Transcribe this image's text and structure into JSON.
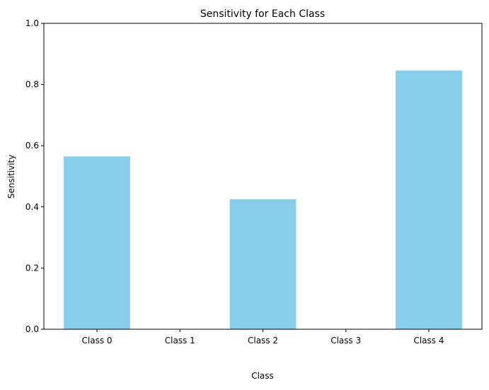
{
  "chart_data": {
    "type": "bar",
    "title": "Sensitivity for Each Class",
    "xlabel": "Class",
    "ylabel": "Sensitivity",
    "categories": [
      "Class 0",
      "Class 1",
      "Class 2",
      "Class 3",
      "Class 4"
    ],
    "values": [
      0.565,
      0.0,
      0.425,
      0.0,
      0.846
    ],
    "ylim": [
      0,
      1
    ],
    "yticks": [
      0.0,
      0.2,
      0.4,
      0.6,
      0.8,
      1.0
    ],
    "ytick_labels": [
      "0.0",
      "0.2",
      "0.4",
      "0.6",
      "0.8",
      "1.0"
    ],
    "bar_color": "#87ceeb",
    "grid": false,
    "legend": false
  }
}
